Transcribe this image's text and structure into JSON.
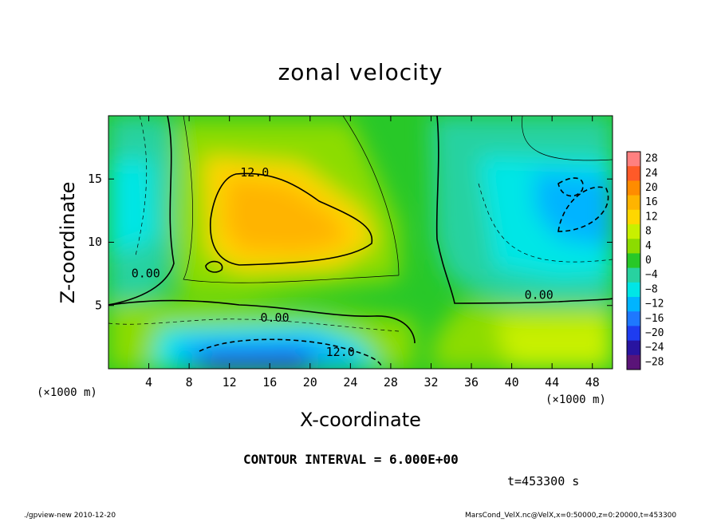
{
  "chart_data": {
    "type": "heatmap",
    "title": "zonal velocity",
    "xlabel": "X-coordinate",
    "ylabel": "Z-coordinate",
    "x_unit_label": "(×1000 m)",
    "y_unit_label": "(×1000 m)",
    "xlim": [
      0,
      50
    ],
    "ylim": [
      0,
      20
    ],
    "x_ticks": [
      4,
      8,
      12,
      16,
      20,
      24,
      28,
      32,
      36,
      40,
      44,
      48
    ],
    "y_ticks": [
      5,
      10,
      15
    ],
    "colorbar": {
      "levels": [
        28,
        24,
        20,
        16,
        12,
        8,
        4,
        0,
        -4,
        -8,
        -12,
        -16,
        -20,
        -24,
        -28
      ],
      "labels": [
        "28",
        "24",
        "20",
        "16",
        "12",
        "8",
        "4",
        "0",
        "−4",
        "−8",
        "−12",
        "−16",
        "−20",
        "−24",
        "−28"
      ],
      "colors": [
        "#ff8080",
        "#ff5a28",
        "#ff8c00",
        "#ffb400",
        "#ffd700",
        "#c8f000",
        "#8cdc00",
        "#28c828",
        "#28d2a0",
        "#00e6e6",
        "#00b4ff",
        "#1e78ff",
        "#1e3cf0",
        "#2814a0",
        "#5a1478"
      ]
    },
    "features": [
      {
        "kind": "max",
        "x": 16,
        "z": 12,
        "value": 14
      },
      {
        "kind": "min",
        "x": 14,
        "z": 0.5,
        "value": -20
      },
      {
        "kind": "min",
        "x": 46,
        "z": 13,
        "value": -11
      }
    ],
    "contour_labels": [
      {
        "text": "12.0",
        "x": 14.5,
        "z": 15.5
      },
      {
        "text": "0.00",
        "x": 3.7,
        "z": 7.5
      },
      {
        "text": "0.00",
        "x": 16.5,
        "z": 4
      },
      {
        "text": "12.0",
        "x": 23,
        "z": 1.3
      },
      {
        "text": "0.00",
        "x": 42.7,
        "z": 5.8
      }
    ],
    "contour_interval": "CONTOUR INTERVAL = 6.000E+00",
    "time": "t=453300 s",
    "footer_left": "./gpview-new  2010-12-20",
    "footer_right": "MarsCond_VelX.nc@VelX,x=0:50000,z=0:20000,t=453300"
  }
}
